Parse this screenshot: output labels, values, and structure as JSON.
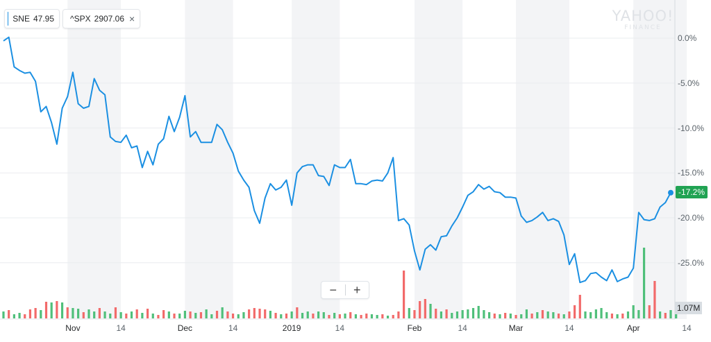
{
  "legend": [
    {
      "symbol": "SNE",
      "value": "47.95",
      "color": "#1a8fe2"
    },
    {
      "symbol": "^SPX",
      "value": "2907.06",
      "color": "#5ac8fa",
      "close_icon": "close-icon"
    }
  ],
  "watermark": {
    "brand": "YAHOO!",
    "sub": "FINANCE"
  },
  "zoom": {
    "minus": "−",
    "plus": "+"
  },
  "last_badge": "-17.2%",
  "volume_badge": "1.07M",
  "colors": {
    "line": "#1a8fe2",
    "up": "#4fbf7a",
    "down": "#f26a6a",
    "band": "#f3f4f6",
    "grid": "#eaecef",
    "badge": "#21a353"
  },
  "chart_data": {
    "type": "line",
    "y_axis": {
      "ticks": [
        "0.0%",
        "-5.0%",
        "-10.0%",
        "-15.0%",
        "-20.0%",
        "-25.0%"
      ],
      "tick_values": [
        0,
        -5,
        -10,
        -15,
        -20,
        -25
      ],
      "range": [
        -29,
        2
      ],
      "position": "right"
    },
    "x_axis": {
      "ticks": [
        {
          "label": "Nov",
          "major": true,
          "i": 13
        },
        {
          "label": "14",
          "major": false,
          "i": 22
        },
        {
          "label": "Dec",
          "major": true,
          "i": 34
        },
        {
          "label": "14",
          "major": false,
          "i": 43
        },
        {
          "label": "2019",
          "major": true,
          "i": 54
        },
        {
          "label": "14",
          "major": false,
          "i": 63
        },
        {
          "label": "Feb",
          "major": true,
          "i": 77
        },
        {
          "label": "14",
          "major": false,
          "i": 86
        },
        {
          "label": "Mar",
          "major": true,
          "i": 96
        },
        {
          "label": "14",
          "major": false,
          "i": 106
        },
        {
          "label": "Apr",
          "major": true,
          "i": 118
        },
        {
          "label": "14",
          "major": false,
          "i": 128
        }
      ]
    },
    "band_ranges": [
      [
        12,
        22
      ],
      [
        34,
        43
      ],
      [
        54,
        63
      ],
      [
        77,
        86
      ],
      [
        96,
        106
      ],
      [
        118,
        128
      ]
    ],
    "series": [
      {
        "name": "SNE",
        "values": [
          -0.3,
          0.1,
          -3.2,
          -3.6,
          -3.9,
          -3.8,
          -4.8,
          -8.2,
          -7.6,
          -9.4,
          -11.8,
          -7.8,
          -6.5,
          -3.8,
          -7.3,
          -7.8,
          -7.6,
          -4.5,
          -5.8,
          -6.3,
          -11.0,
          -11.5,
          -11.6,
          -10.8,
          -12.2,
          -12.0,
          -14.4,
          -12.6,
          -14.1,
          -11.8,
          -11.2,
          -8.7,
          -10.4,
          -8.8,
          -6.4,
          -11.0,
          -10.4,
          -11.6,
          -11.6,
          -11.6,
          -9.6,
          -10.2,
          -11.6,
          -12.8,
          -14.8,
          -15.8,
          -16.6,
          -19.2,
          -20.6,
          -17.8,
          -16.2,
          -16.9,
          -16.6,
          -15.8,
          -18.6,
          -15.0,
          -14.3,
          -14.1,
          -14.1,
          -15.3,
          -15.4,
          -16.4,
          -14.1,
          -14.4,
          -14.4,
          -13.5,
          -16.2,
          -16.2,
          -16.3,
          -15.9,
          -15.8,
          -15.9,
          -15.0,
          -13.3,
          -20.3,
          -20.1,
          -20.8,
          -23.7,
          -25.8,
          -23.5,
          -23.0,
          -23.6,
          -22.1,
          -22.0,
          -20.9,
          -20.0,
          -18.8,
          -17.5,
          -17.1,
          -16.3,
          -16.8,
          -16.5,
          -17.1,
          -17.2,
          -17.7,
          -17.7,
          -17.8,
          -19.8,
          -20.5,
          -20.3,
          -19.9,
          -19.4,
          -20.3,
          -20.1,
          -20.4,
          -21.9,
          -25.2,
          -24.0,
          -27.2,
          -27.0,
          -26.2,
          -26.1,
          -26.6,
          -27.0,
          -25.8,
          -27.1,
          -26.8,
          -26.6,
          -25.6,
          -19.4,
          -20.2,
          -20.3,
          -20.1,
          -18.8,
          -18.3,
          -17.2
        ]
      }
    ],
    "volume": [
      {
        "v": 1.0,
        "up": true
      },
      {
        "v": 1.2,
        "up": false
      },
      {
        "v": 0.6,
        "up": true
      },
      {
        "v": 0.8,
        "up": true
      },
      {
        "v": 0.6,
        "up": false
      },
      {
        "v": 1.3,
        "up": false
      },
      {
        "v": 1.5,
        "up": false
      },
      {
        "v": 1.2,
        "up": true
      },
      {
        "v": 2.4,
        "up": false
      },
      {
        "v": 2.3,
        "up": true
      },
      {
        "v": 2.5,
        "up": false
      },
      {
        "v": 2.3,
        "up": true
      },
      {
        "v": 1.6,
        "up": false
      },
      {
        "v": 1.5,
        "up": true
      },
      {
        "v": 1.4,
        "up": true
      },
      {
        "v": 0.9,
        "up": false
      },
      {
        "v": 1.3,
        "up": true
      },
      {
        "v": 1.0,
        "up": true
      },
      {
        "v": 1.5,
        "up": false
      },
      {
        "v": 1.0,
        "up": true
      },
      {
        "v": 0.7,
        "up": true
      },
      {
        "v": 1.6,
        "up": false
      },
      {
        "v": 0.9,
        "up": true
      },
      {
        "v": 0.7,
        "up": false
      },
      {
        "v": 1.0,
        "up": true
      },
      {
        "v": 1.3,
        "up": false
      },
      {
        "v": 0.8,
        "up": true
      },
      {
        "v": 1.4,
        "up": false
      },
      {
        "v": 0.7,
        "up": true
      },
      {
        "v": 0.5,
        "up": false
      },
      {
        "v": 1.2,
        "up": false
      },
      {
        "v": 1.0,
        "up": true
      },
      {
        "v": 0.7,
        "up": false
      },
      {
        "v": 0.7,
        "up": true
      },
      {
        "v": 1.1,
        "up": true
      },
      {
        "v": 1.0,
        "up": false
      },
      {
        "v": 0.8,
        "up": true
      },
      {
        "v": 0.9,
        "up": false
      },
      {
        "v": 1.3,
        "up": true
      },
      {
        "v": 0.6,
        "up": true
      },
      {
        "v": 1.1,
        "up": false
      },
      {
        "v": 1.6,
        "up": true
      },
      {
        "v": 1.0,
        "up": false
      },
      {
        "v": 0.7,
        "up": false
      },
      {
        "v": 0.6,
        "up": true
      },
      {
        "v": 0.9,
        "up": true
      },
      {
        "v": 1.3,
        "up": false
      },
      {
        "v": 1.5,
        "up": false
      },
      {
        "v": 1.4,
        "up": false
      },
      {
        "v": 1.3,
        "up": false
      },
      {
        "v": 1.1,
        "up": true
      },
      {
        "v": 0.8,
        "up": false
      },
      {
        "v": 0.6,
        "up": true
      },
      {
        "v": 0.7,
        "up": false
      },
      {
        "v": 1.0,
        "up": true
      },
      {
        "v": 1.6,
        "up": false
      },
      {
        "v": 0.8,
        "up": true
      },
      {
        "v": 1.0,
        "up": true
      },
      {
        "v": 0.7,
        "up": false
      },
      {
        "v": 1.0,
        "up": true
      },
      {
        "v": 0.9,
        "up": true
      },
      {
        "v": 0.5,
        "up": false
      },
      {
        "v": 0.8,
        "up": true
      },
      {
        "v": 0.6,
        "up": false
      },
      {
        "v": 0.7,
        "up": true
      },
      {
        "v": 0.9,
        "up": false
      },
      {
        "v": 0.6,
        "up": true
      },
      {
        "v": 0.5,
        "up": false
      },
      {
        "v": 0.7,
        "up": false
      },
      {
        "v": 0.6,
        "up": true
      },
      {
        "v": 0.5,
        "up": true
      },
      {
        "v": 0.6,
        "up": false
      },
      {
        "v": 0.4,
        "up": true
      },
      {
        "v": 0.5,
        "up": false
      },
      {
        "v": 1.0,
        "up": false
      },
      {
        "v": 6.9,
        "up": false
      },
      {
        "v": 1.5,
        "up": true
      },
      {
        "v": 1.2,
        "up": false
      },
      {
        "v": 2.5,
        "up": false
      },
      {
        "v": 2.8,
        "up": false
      },
      {
        "v": 2.1,
        "up": true
      },
      {
        "v": 1.4,
        "up": false
      },
      {
        "v": 1.0,
        "up": true
      },
      {
        "v": 1.3,
        "up": false
      },
      {
        "v": 0.8,
        "up": true
      },
      {
        "v": 1.0,
        "up": true
      },
      {
        "v": 1.2,
        "up": true
      },
      {
        "v": 1.3,
        "up": true
      },
      {
        "v": 1.5,
        "up": true
      },
      {
        "v": 1.8,
        "up": true
      },
      {
        "v": 1.2,
        "up": true
      },
      {
        "v": 0.9,
        "up": true
      },
      {
        "v": 0.7,
        "up": false
      },
      {
        "v": 0.6,
        "up": true
      },
      {
        "v": 0.8,
        "up": false
      },
      {
        "v": 0.7,
        "up": true
      },
      {
        "v": 0.5,
        "up": false
      },
      {
        "v": 0.6,
        "up": true
      },
      {
        "v": 1.3,
        "up": true
      },
      {
        "v": 0.7,
        "up": false
      },
      {
        "v": 0.9,
        "up": true
      },
      {
        "v": 1.2,
        "up": false
      },
      {
        "v": 1.0,
        "up": true
      },
      {
        "v": 0.9,
        "up": true
      },
      {
        "v": 0.7,
        "up": false
      },
      {
        "v": 0.6,
        "up": true
      },
      {
        "v": 1.0,
        "up": false
      },
      {
        "v": 1.9,
        "up": false
      },
      {
        "v": 3.4,
        "up": false
      },
      {
        "v": 1.0,
        "up": true
      },
      {
        "v": 0.9,
        "up": true
      },
      {
        "v": 1.3,
        "up": true
      },
      {
        "v": 1.5,
        "up": true
      },
      {
        "v": 0.9,
        "up": true
      },
      {
        "v": 0.7,
        "up": false
      },
      {
        "v": 0.6,
        "up": true
      },
      {
        "v": 0.7,
        "up": false
      },
      {
        "v": 1.0,
        "up": true
      },
      {
        "v": 1.9,
        "up": true
      },
      {
        "v": 1.2,
        "up": true
      },
      {
        "v": 10.2,
        "up": true
      },
      {
        "v": 1.9,
        "up": false
      },
      {
        "v": 5.4,
        "up": false
      },
      {
        "v": 1.0,
        "up": true
      },
      {
        "v": 0.8,
        "up": false
      },
      {
        "v": 1.2,
        "up": true
      },
      {
        "v": 1.4,
        "up": true
      }
    ]
  }
}
